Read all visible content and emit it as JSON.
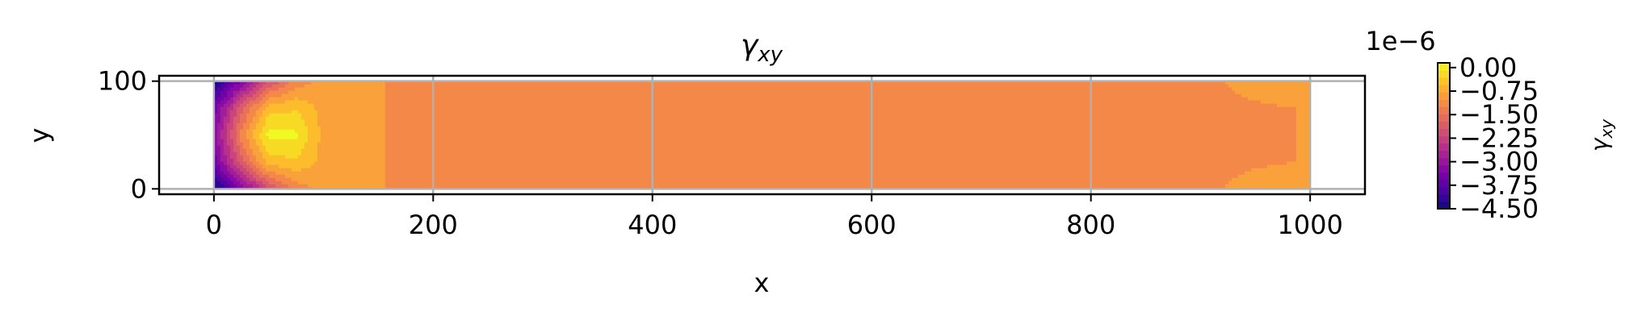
{
  "chart_data": {
    "type": "heatmap",
    "subtype": "filled-contour",
    "title": "γ_xy",
    "xlabel": "x",
    "ylabel": "y",
    "xlim": [
      -50,
      1050
    ],
    "ylim": [
      -5,
      105
    ],
    "xticks": [
      "0",
      "200",
      "400",
      "600",
      "800",
      "1000"
    ],
    "yticks": [
      "0",
      "100"
    ],
    "grid": true,
    "colormap": "plasma",
    "colorbar": {
      "label": "γ_xy",
      "offset_text": "1e−6",
      "range": [
        -4.5,
        0.15
      ],
      "ticks": [
        "0.00",
        "−0.75",
        "−1.50",
        "−2.25",
        "−3.00",
        "−3.75",
        "−4.50"
      ]
    },
    "field": {
      "x": [
        0,
        25,
        50,
        75,
        100,
        150,
        200,
        400,
        600,
        800,
        900,
        950,
        1000
      ],
      "y": [
        0,
        25,
        50,
        75,
        100
      ],
      "values": [
        [
          -4.5,
          -3.3,
          -2.0,
          -1.2,
          -0.9,
          -1.0,
          -1.1,
          -1.1,
          -1.1,
          -1.1,
          -1.1,
          -0.9,
          -0.8
        ],
        [
          -3.5,
          -1.8,
          -0.5,
          -0.4,
          -0.8,
          -1.0,
          -1.1,
          -1.1,
          -1.1,
          -1.1,
          -1.1,
          -1.05,
          -1.0
        ],
        [
          -3.2,
          -1.2,
          0.1,
          0.05,
          -0.8,
          -1.0,
          -1.1,
          -1.1,
          -1.1,
          -1.1,
          -1.1,
          -1.05,
          -1.0
        ],
        [
          -3.5,
          -1.8,
          -0.5,
          -0.4,
          -0.8,
          -1.0,
          -1.1,
          -1.1,
          -1.1,
          -1.1,
          -1.1,
          -1.05,
          -1.0
        ],
        [
          -4.5,
          -3.3,
          -2.0,
          -1.2,
          -0.9,
          -1.0,
          -1.1,
          -1.1,
          -1.1,
          -1.1,
          -1.1,
          -0.9,
          -0.8
        ]
      ]
    }
  }
}
